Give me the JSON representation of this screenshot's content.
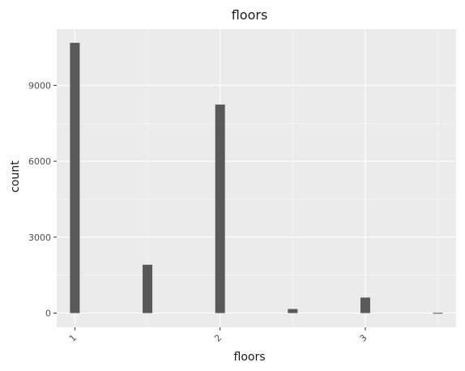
{
  "chart_data": {
    "type": "bar",
    "title": "floors",
    "xlabel": "floors",
    "ylabel": "count",
    "x": [
      1.0,
      1.5,
      2.0,
      2.5,
      3.0,
      3.5
    ],
    "values": [
      10680,
      1910,
      8240,
      161,
      613,
      8
    ],
    "xlim": [
      0.875,
      3.625
    ],
    "ylim": [
      -560,
      11220
    ],
    "xticks": [
      1,
      2,
      3
    ],
    "xtick_labels": [
      "1",
      "2",
      "3"
    ],
    "yticks": [
      0,
      3000,
      6000,
      9000
    ],
    "ytick_labels": [
      "0",
      "3000",
      "6000",
      "9000"
    ],
    "bar_color": "#595959",
    "panel_color": "#ebebeb",
    "grid": true
  }
}
